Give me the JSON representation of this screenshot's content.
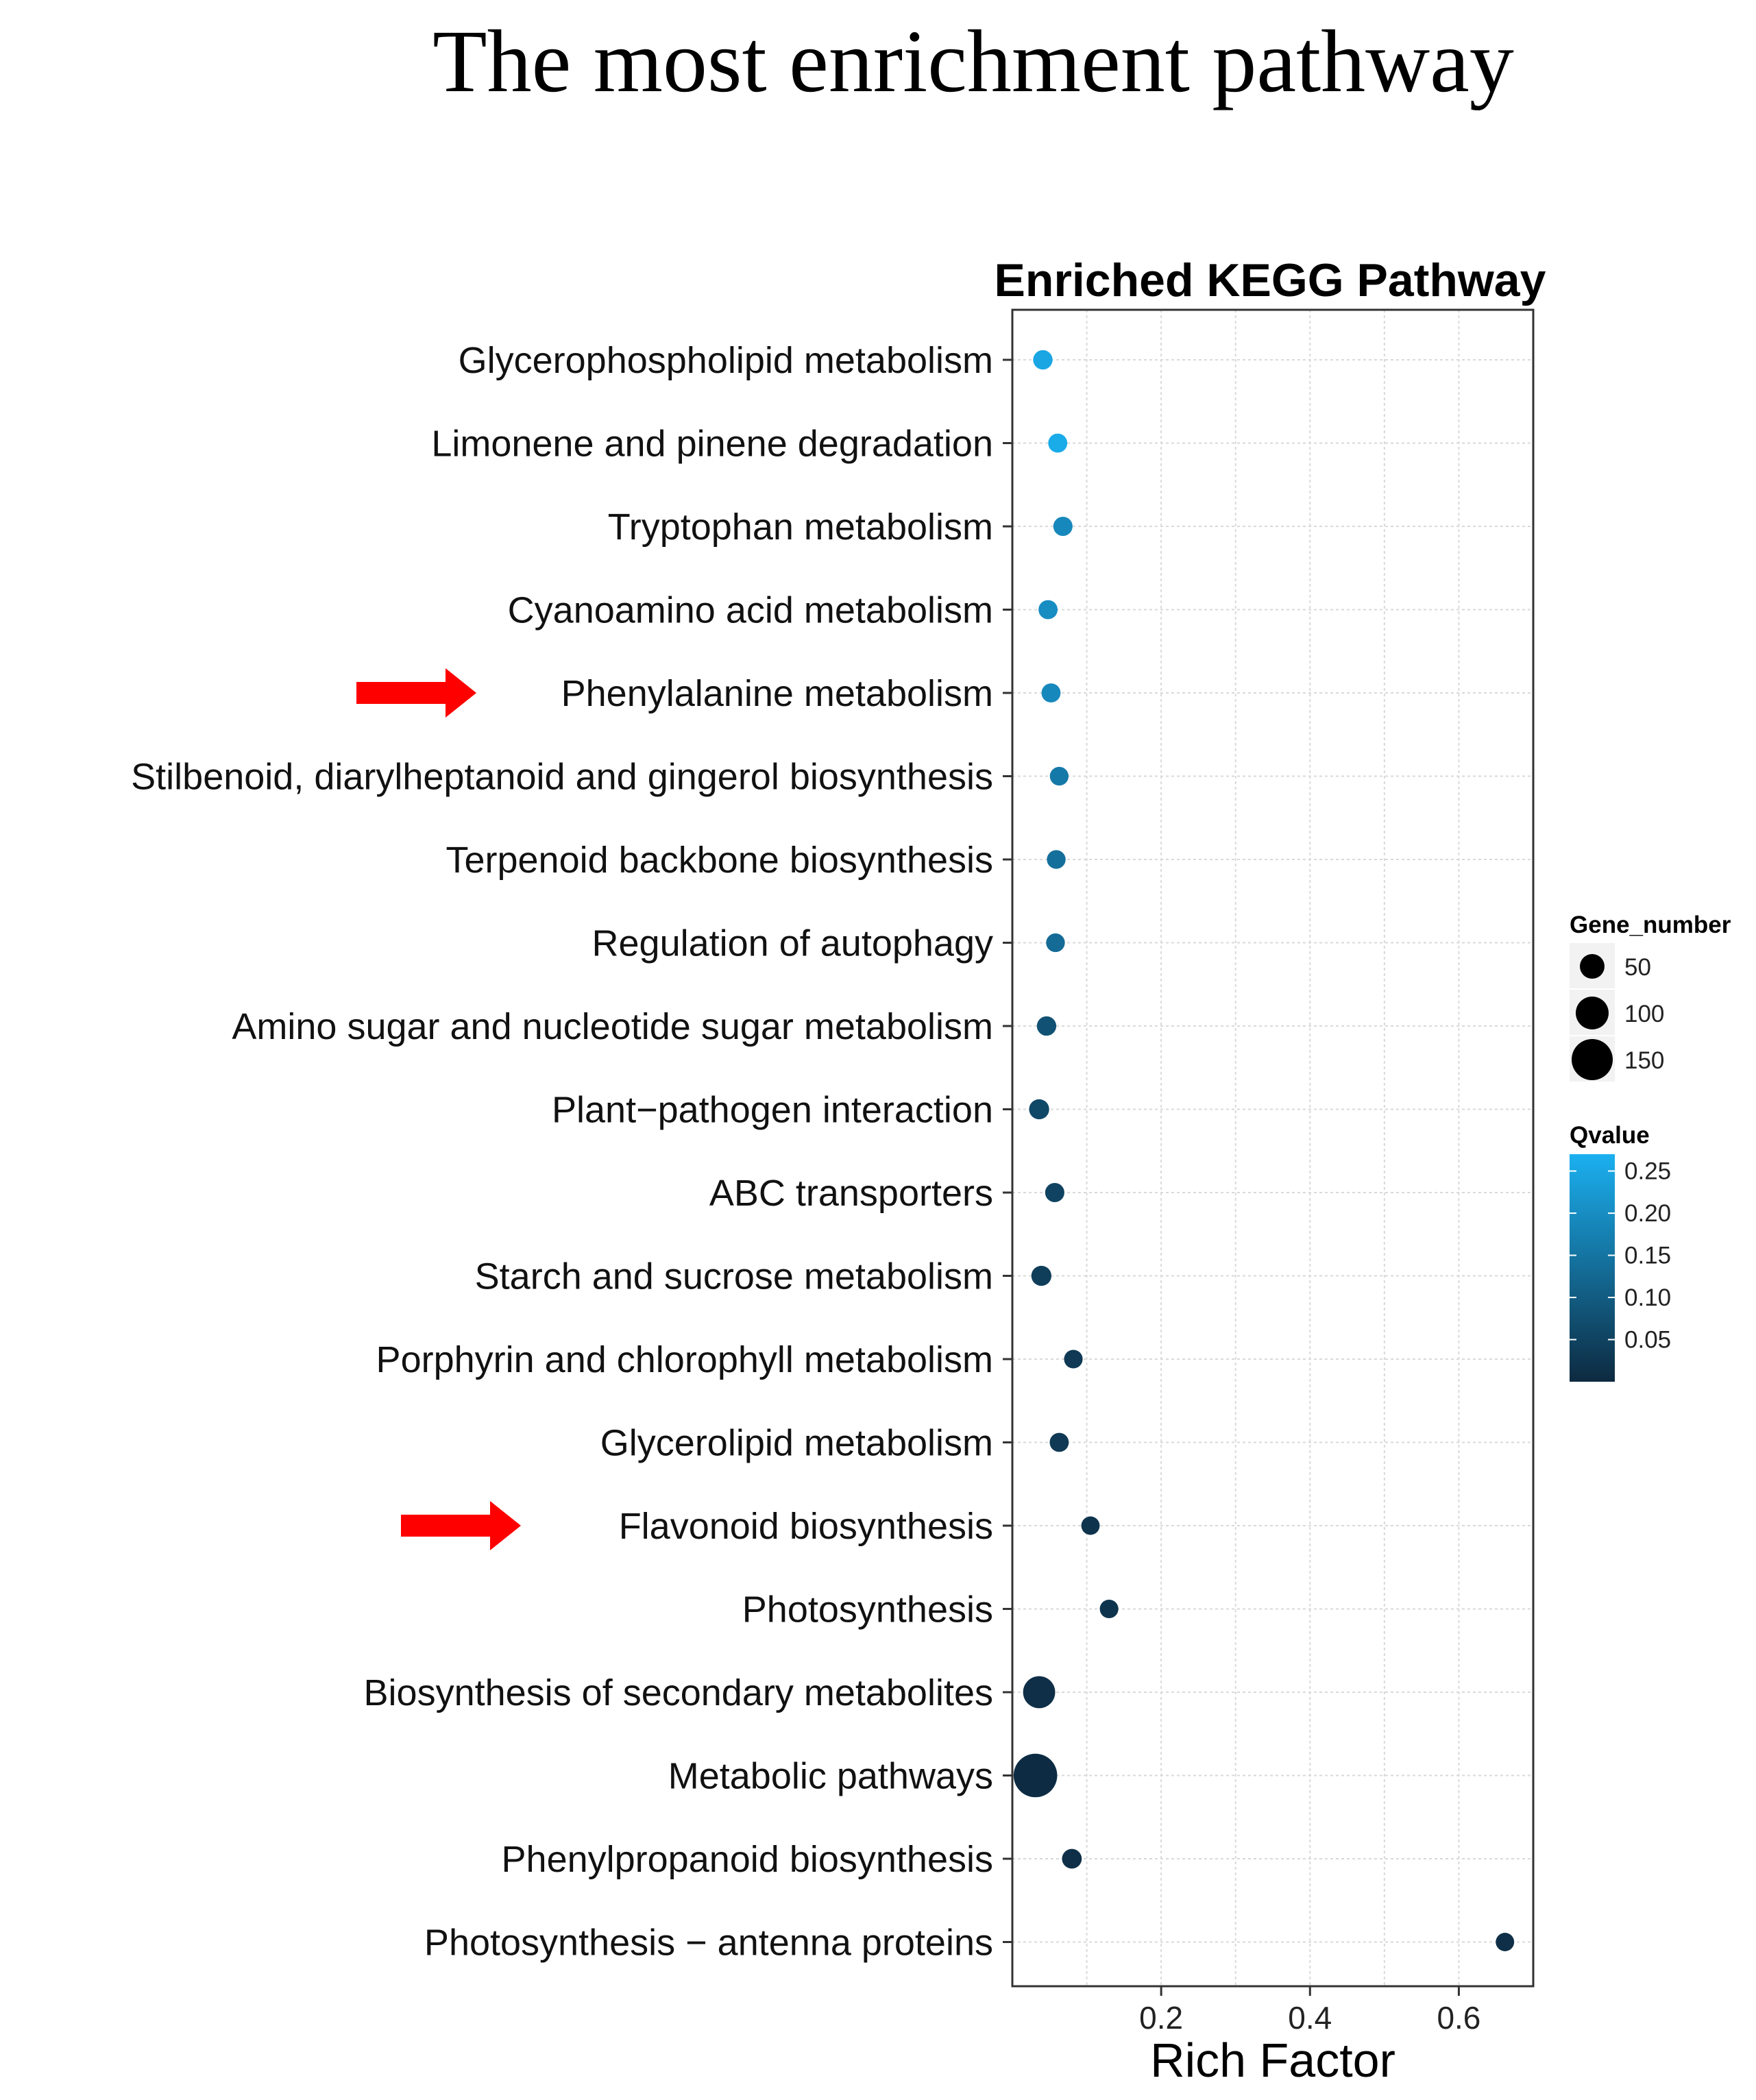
{
  "page": {
    "heading": "The most enrichment pathway"
  },
  "chart_data": {
    "type": "scatter",
    "title": "Enriched KEGG Pathway",
    "xlabel": "Rich Factor",
    "ylabel": "",
    "xlim": [
      0.0,
      0.7
    ],
    "xticks": [
      0.2,
      0.4,
      0.6
    ],
    "xtick_labels": [
      "0.2",
      "0.4",
      "0.6"
    ],
    "grid": true,
    "categories": [
      "Glycerophospholipid metabolism",
      "Limonene and pinene degradation",
      "Tryptophan metabolism",
      "Cyanoamino acid metabolism",
      "Phenylalanine metabolism",
      "Stilbenoid, diarylheptanoid and gingerol biosynthesis",
      "Terpenoid backbone biosynthesis",
      "Regulation of autophagy",
      "Amino sugar and nucleotide sugar metabolism",
      "Plant−pathogen interaction",
      "ABC transporters",
      "Starch and sucrose metabolism",
      "Porphyrin and chlorophyll metabolism",
      "Glycerolipid metabolism",
      "Flavonoid biosynthesis",
      "Photosynthesis",
      "Biosynthesis of secondary metabolites",
      "Metabolic pathways",
      "Phenylpropanoid biosynthesis",
      "Photosynthesis − antenna proteins"
    ],
    "points": [
      {
        "pathway": "Glycerophospholipid metabolism",
        "rich_factor": 0.041,
        "gene_number": 18,
        "qvalue": 0.25
      },
      {
        "pathway": "Limonene and pinene degradation",
        "rich_factor": 0.061,
        "gene_number": 16,
        "qvalue": 0.26
      },
      {
        "pathway": "Tryptophan metabolism",
        "rich_factor": 0.068,
        "gene_number": 17,
        "qvalue": 0.19
      },
      {
        "pathway": "Cyanoamino acid metabolism",
        "rich_factor": 0.048,
        "gene_number": 16,
        "qvalue": 0.2
      },
      {
        "pathway": "Phenylalanine metabolism",
        "rich_factor": 0.052,
        "gene_number": 16,
        "qvalue": 0.19
      },
      {
        "pathway": "Stilbenoid, diarylheptanoid and gingerol biosynthesis",
        "rich_factor": 0.063,
        "gene_number": 14,
        "qvalue": 0.16
      },
      {
        "pathway": "Terpenoid backbone biosynthesis",
        "rich_factor": 0.059,
        "gene_number": 14,
        "qvalue": 0.14
      },
      {
        "pathway": "Regulation of autophagy",
        "rich_factor": 0.058,
        "gene_number": 14,
        "qvalue": 0.13
      },
      {
        "pathway": "Amino sugar and nucleotide sugar metabolism",
        "rich_factor": 0.046,
        "gene_number": 18,
        "qvalue": 0.08
      },
      {
        "pathway": "Plant−pathogen interaction",
        "rich_factor": 0.036,
        "gene_number": 22,
        "qvalue": 0.06
      },
      {
        "pathway": "ABC transporters",
        "rich_factor": 0.057,
        "gene_number": 17,
        "qvalue": 0.05
      },
      {
        "pathway": "Starch and sucrose metabolism",
        "rich_factor": 0.039,
        "gene_number": 22,
        "qvalue": 0.04
      },
      {
        "pathway": "Porphyrin and chlorophyll metabolism",
        "rich_factor": 0.082,
        "gene_number": 13,
        "qvalue": 0.03
      },
      {
        "pathway": "Glycerolipid metabolism",
        "rich_factor": 0.063,
        "gene_number": 16,
        "qvalue": 0.03
      },
      {
        "pathway": "Flavonoid biosynthesis",
        "rich_factor": 0.105,
        "gene_number": 12,
        "qvalue": 0.02
      },
      {
        "pathway": "Photosynthesis",
        "rich_factor": 0.13,
        "gene_number": 13,
        "qvalue": 0.02
      },
      {
        "pathway": "Biosynthesis of secondary metabolites",
        "rich_factor": 0.036,
        "gene_number": 95,
        "qvalue": 0.01
      },
      {
        "pathway": "Metabolic pathways",
        "rich_factor": 0.031,
        "gene_number": 165,
        "qvalue": 0.005
      },
      {
        "pathway": "Phenylpropanoid biosynthesis",
        "rich_factor": 0.08,
        "gene_number": 20,
        "qvalue": 0.01
      },
      {
        "pathway": "Photosynthesis − antenna proteins",
        "rich_factor": 0.662,
        "gene_number": 12,
        "qvalue": 0.01
      }
    ],
    "highlighted": [
      "Phenylalanine metabolism",
      "Flavonoid biosynthesis"
    ],
    "legend": {
      "placement": "right",
      "size_title": "Gene_number",
      "size_entries": [
        {
          "label": "50",
          "value": 50
        },
        {
          "label": "100",
          "value": 100
        },
        {
          "label": "150",
          "value": 150
        }
      ],
      "color_title": "Qvalue",
      "color_range": [
        0.0,
        0.27
      ],
      "color_ticks": [
        {
          "label": "0.25",
          "value": 0.25
        },
        {
          "label": "0.20",
          "value": 0.2
        },
        {
          "label": "0.15",
          "value": 0.15
        },
        {
          "label": "0.10",
          "value": 0.1
        },
        {
          "label": "0.05",
          "value": 0.05
        }
      ],
      "color_low": "#0d2a40",
      "color_high": "#1bb0f0"
    },
    "colors": {
      "arrow": "#ff0000",
      "grid": "#d9d9d9",
      "panel_border": "#333333"
    }
  }
}
